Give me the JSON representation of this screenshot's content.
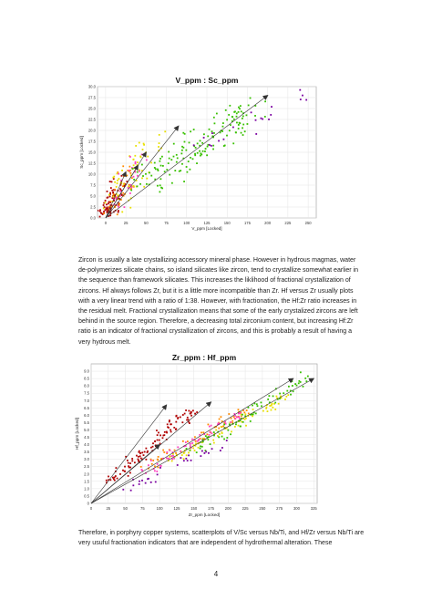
{
  "charts": {
    "vsc": {
      "title": "V_ppm : Sc_ppm",
      "xlabel": "V_ppm [Locked]",
      "ylabel": "Sc_ppm [Locked]"
    },
    "zrhf": {
      "title": "Zr_ppm : Hf_ppm",
      "xlabel": "Zr_ppm [Locked]",
      "ylabel": "Hf_ppm [Locked]"
    }
  },
  "chart_data": [
    {
      "type": "scatter",
      "title": "V_ppm : Sc_ppm",
      "xlabel": "V_ppm [Locked]",
      "ylabel": "Sc_ppm [Locked]",
      "xlim": [
        -10,
        260
      ],
      "ylim": [
        0,
        30
      ],
      "x_ticks": [
        "0",
        "25",
        "50",
        "75",
        "100",
        "125",
        "150",
        "175",
        "200",
        "225",
        "250"
      ],
      "y_ticks": [
        "0.0",
        "2.5",
        "5.0",
        "7.5",
        "10.0",
        "12.5",
        "15.0",
        "17.5",
        "20.0",
        "22.5",
        "25.0",
        "27.5",
        "30.0"
      ],
      "grid": true,
      "series": [
        {
          "color": "#b00000",
          "clusters": [
            {
              "x": [
                0,
                18
              ],
              "y": [
                0,
                9
              ],
              "n": 90,
              "spread": 1.2
            }
          ]
        },
        {
          "color": "#ff8a00",
          "clusters": [
            {
              "x": [
                5,
                30
              ],
              "y": [
                1,
                11
              ],
              "n": 40,
              "spread": 1.5
            }
          ]
        },
        {
          "color": "#e8e000",
          "clusters": [
            {
              "x": [
                10,
                55
              ],
              "y": [
                3,
                18
              ],
              "n": 60,
              "spread": 2.2
            }
          ]
        },
        {
          "color": "#ff40c0",
          "clusters": [
            {
              "x": [
                5,
                40
              ],
              "y": [
                2,
                14
              ],
              "n": 25,
              "spread": 1.5
            }
          ]
        },
        {
          "color": "#38c000",
          "clusters": [
            {
              "x": [
                50,
                180
              ],
              "y": [
                8,
                25
              ],
              "n": 150,
              "spread": 3.0
            }
          ]
        },
        {
          "color": "#7a00a0",
          "clusters": [
            {
              "x": [
                120,
                250
              ],
              "y": [
                15,
                29
              ],
              "n": 20,
              "spread": 1.8
            }
          ]
        }
      ],
      "arrows": [
        {
          "from": [
            0,
            0
          ],
          "to": [
            50,
            15
          ]
        },
        {
          "from": [
            0,
            0
          ],
          "to": [
            25,
            10.5
          ]
        },
        {
          "from": [
            0,
            0
          ],
          "to": [
            90,
            21
          ]
        },
        {
          "from": [
            0,
            0
          ],
          "to": [
            200,
            28
          ]
        },
        {
          "from": [
            0,
            0
          ],
          "to": [
            40,
            12
          ]
        }
      ]
    },
    {
      "type": "scatter",
      "title": "Zr_ppm : Hf_ppm",
      "xlabel": "Zr_ppm [Locked]",
      "ylabel": "Hf_ppm [Locked]",
      "xlim": [
        0,
        330
      ],
      "ylim": [
        0,
        9.5
      ],
      "x_ticks": [
        "0",
        "25",
        "50",
        "75",
        "100",
        "125",
        "150",
        "175",
        "200",
        "225",
        "250",
        "275",
        "300",
        "325"
      ],
      "y_ticks": [
        "0",
        "0.5",
        "1.0",
        "1.5",
        "2.0",
        "2.5",
        "3.0",
        "3.5",
        "4.0",
        "4.5",
        "5.0",
        "5.5",
        "6.0",
        "6.5",
        "7.0",
        "7.5",
        "8.0",
        "8.5",
        "9.0"
      ],
      "grid": true,
      "series": [
        {
          "color": "#b00000",
          "clusters": [
            {
              "x": [
                30,
                150
              ],
              "y": [
                1.5,
                6.5
              ],
              "n": 110,
              "spread": 0.35
            }
          ]
        },
        {
          "color": "#ff8a00",
          "clusters": [
            {
              "x": [
                80,
                230
              ],
              "y": [
                2.5,
                6.5
              ],
              "n": 60,
              "spread": 0.3
            }
          ]
        },
        {
          "color": "#e8e000",
          "clusters": [
            {
              "x": [
                120,
                290
              ],
              "y": [
                3.0,
                7.5
              ],
              "n": 80,
              "spread": 0.3
            }
          ]
        },
        {
          "color": "#ff40c0",
          "clusters": [
            {
              "x": [
                70,
                220
              ],
              "y": [
                2.0,
                6.2
              ],
              "n": 60,
              "spread": 0.3
            }
          ]
        },
        {
          "color": "#38c000",
          "clusters": [
            {
              "x": [
                150,
                320
              ],
              "y": [
                3.5,
                8.8
              ],
              "n": 80,
              "spread": 0.35
            }
          ]
        },
        {
          "color": "#7a00a0",
          "clusters": [
            {
              "x": [
                40,
                200
              ],
              "y": [
                0.8,
                4.2
              ],
              "n": 30,
              "spread": 0.3
            }
          ]
        }
      ],
      "arrows": [
        {
          "from": [
            0,
            0
          ],
          "to": [
            110,
            6.7
          ]
        },
        {
          "from": [
            0,
            0
          ],
          "to": [
            175,
            6.9
          ]
        },
        {
          "from": [
            0,
            0
          ],
          "to": [
            295,
            8.5
          ]
        },
        {
          "from": [
            0,
            0
          ],
          "to": [
            325,
            8.5
          ]
        },
        {
          "from": [
            0,
            0
          ],
          "to": [
            100,
            4.0
          ]
        }
      ]
    }
  ],
  "text": {
    "paragraph1": "Zircon is usually a late crystallizing accessory mineral phase. However in hydrous magmas, water de-polymerizes silicate chains, so island silicates like zircon, tend to crystallize somewhat earlier in the sequence than framework silicates. This increases the liklihood of fractional crystallization of zircons. Hf always follows Zr, but it is a little more incompatible than Zr. Hf versus Zr usually plots with a very linear trend with a ratio of 1:38. However, with fractionation, the Hf:Zr ratio increases in the residual melt. Fractional crystallization means that some of the early crystalized zircons are left behind in the source region. Therefore, a decreasing total zirconium content, but increasing Hf:Zr ratio is an indicator of fractional crystallization of zircons, and this is probably a result of having a very hydrous melt.",
    "paragraph2": "Therefore, in porphyry copper systems, scatterplots of V/Sc versus Nb/Ti, and Hf/Zr versus Nb/Ti are very usuful fractionation indicators that are independent of hydrothermal alteration. These",
    "page_number": "4"
  }
}
